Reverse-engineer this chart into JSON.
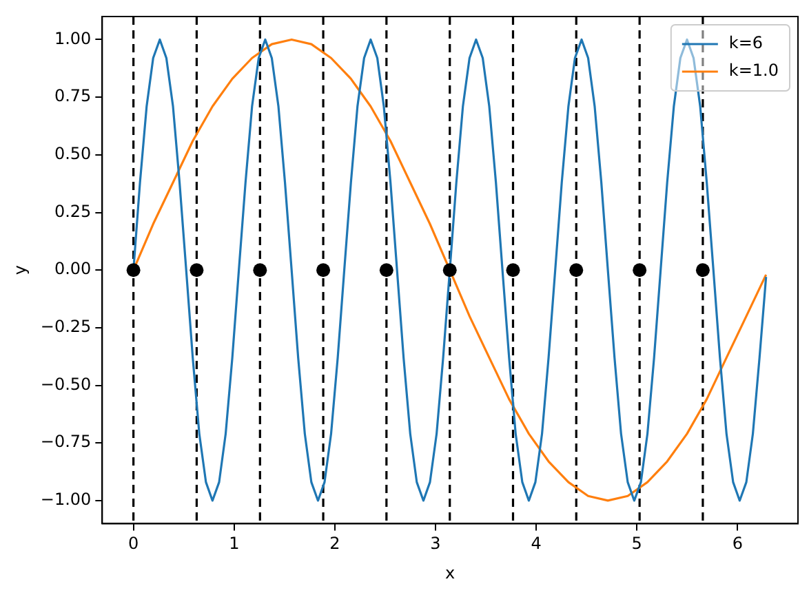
{
  "chart_data": {
    "type": "line",
    "xlabel": "x",
    "ylabel": "y",
    "xlim": [
      -0.31,
      6.6
    ],
    "ylim": [
      -1.1,
      1.1
    ],
    "xticks": [
      0,
      1,
      2,
      3,
      4,
      5,
      6
    ],
    "yticks": [
      {
        "value": -1,
        "label": "−1.00"
      },
      {
        "value": -0.75,
        "label": "−0.75"
      },
      {
        "value": -0.5,
        "label": "−0.50"
      },
      {
        "value": -0.25,
        "label": "−0.25"
      },
      {
        "value": 0,
        "label": "0.00"
      },
      {
        "value": 0.25,
        "label": "0.25"
      },
      {
        "value": 0.5,
        "label": "0.50"
      },
      {
        "value": 0.75,
        "label": "0.75"
      },
      {
        "value": 1,
        "label": "1.00"
      }
    ],
    "grid": false,
    "legend": "top right",
    "marker": "none",
    "line_style": "solid",
    "series": [
      {
        "name": "k=6",
        "color": "#1f77b4",
        "x": [
          0,
          0.065,
          0.131,
          0.196,
          0.262,
          0.327,
          0.393,
          0.458,
          0.524,
          0.589,
          0.654,
          0.72,
          0.785,
          0.851,
          0.916,
          0.982,
          1.047,
          1.113,
          1.178,
          1.244,
          1.309,
          1.374,
          1.44,
          1.505,
          1.571,
          1.636,
          1.702,
          1.767,
          1.833,
          1.898,
          1.963,
          2.029,
          2.094,
          2.16,
          2.225,
          2.291,
          2.356,
          2.422,
          2.487,
          2.553,
          2.618,
          2.683,
          2.749,
          2.814,
          2.88,
          2.945,
          3.011,
          3.076,
          3.142,
          3.207,
          3.272,
          3.338,
          3.403,
          3.469,
          3.534,
          3.6,
          3.665,
          3.731,
          3.796,
          3.862,
          3.927,
          3.992,
          4.058,
          4.123,
          4.189,
          4.254,
          4.32,
          4.385,
          4.451,
          4.516,
          4.581,
          4.647,
          4.712,
          4.778,
          4.843,
          4.909,
          4.974,
          5.04,
          5.105,
          5.171,
          5.236,
          5.301,
          5.367,
          5.432,
          5.498,
          5.563,
          5.629,
          5.694,
          5.76,
          5.825,
          5.89,
          5.956,
          6.021,
          6.087,
          6.152,
          6.218,
          6.283
        ],
        "values": [
          0,
          0.38,
          0.71,
          0.92,
          1,
          0.92,
          0.71,
          0.38,
          0,
          -0.38,
          -0.71,
          -0.92,
          -1,
          -0.92,
          -0.71,
          -0.38,
          0,
          0.38,
          0.71,
          0.92,
          1,
          0.92,
          0.71,
          0.38,
          0,
          -0.38,
          -0.71,
          -0.92,
          -1,
          -0.92,
          -0.71,
          -0.38,
          0,
          0.38,
          0.71,
          0.92,
          1,
          0.92,
          0.71,
          0.38,
          0,
          -0.38,
          -0.71,
          -0.92,
          -1,
          -0.92,
          -0.71,
          -0.38,
          0,
          0.38,
          0.71,
          0.92,
          1,
          0.92,
          0.71,
          0.38,
          0,
          -0.38,
          -0.71,
          -0.92,
          -1,
          -0.92,
          -0.71,
          -0.38,
          0,
          0.38,
          0.71,
          0.92,
          1,
          0.92,
          0.71,
          0.38,
          0,
          -0.38,
          -0.71,
          -0.92,
          -1,
          -0.92,
          -0.71,
          -0.38,
          0,
          0.38,
          0.71,
          0.92,
          1,
          0.92,
          0.71,
          0.38,
          0,
          -0.38,
          -0.71,
          -0.92,
          -1,
          -0.92,
          -0.71,
          -0.38,
          -0.03
        ]
      },
      {
        "name": "k=1.0",
        "color": "#ff7f0e",
        "x": [
          0,
          0.196,
          0.393,
          0.589,
          0.785,
          0.982,
          1.178,
          1.374,
          1.571,
          1.767,
          1.963,
          2.16,
          2.356,
          2.553,
          2.749,
          2.945,
          3.142,
          3.338,
          3.534,
          3.731,
          3.927,
          4.123,
          4.32,
          4.516,
          4.712,
          4.909,
          5.105,
          5.301,
          5.498,
          5.694,
          5.89,
          6.087,
          6.283
        ],
        "values": [
          0,
          0.2,
          0.38,
          0.56,
          0.71,
          0.83,
          0.92,
          0.98,
          1,
          0.98,
          0.92,
          0.83,
          0.71,
          0.56,
          0.38,
          0.2,
          0,
          -0.2,
          -0.38,
          -0.56,
          -0.71,
          -0.83,
          -0.92,
          -0.98,
          -1,
          -0.98,
          -0.92,
          -0.83,
          -0.71,
          -0.56,
          -0.38,
          -0.2,
          -0.02
        ]
      },
      {
        "type": "scatter",
        "marker": "circle",
        "color": "#000000",
        "x": [
          0,
          0.628,
          1.257,
          1.885,
          2.513,
          3.142,
          3.77,
          4.398,
          5.027,
          5.655
        ],
        "values": [
          0,
          0,
          0,
          0,
          0,
          0,
          0,
          0,
          0,
          0
        ]
      }
    ],
    "ref_lines": [
      {
        "axis": "x",
        "value": 0,
        "color": "#000000",
        "line_style": "dashed"
      },
      {
        "axis": "x",
        "value": 0.628,
        "color": "#000000",
        "line_style": "dashed"
      },
      {
        "axis": "x",
        "value": 1.257,
        "color": "#000000",
        "line_style": "dashed"
      },
      {
        "axis": "x",
        "value": 1.885,
        "color": "#000000",
        "line_style": "dashed"
      },
      {
        "axis": "x",
        "value": 2.513,
        "color": "#000000",
        "line_style": "dashed"
      },
      {
        "axis": "x",
        "value": 3.142,
        "color": "#000000",
        "line_style": "dashed"
      },
      {
        "axis": "x",
        "value": 3.77,
        "color": "#000000",
        "line_style": "dashed"
      },
      {
        "axis": "x",
        "value": 4.398,
        "color": "#000000",
        "line_style": "dashed"
      },
      {
        "axis": "x",
        "value": 5.027,
        "color": "#000000",
        "line_style": "dashed"
      },
      {
        "axis": "x",
        "value": 5.655,
        "color": "#000000",
        "line_style": "dashed"
      }
    ]
  }
}
